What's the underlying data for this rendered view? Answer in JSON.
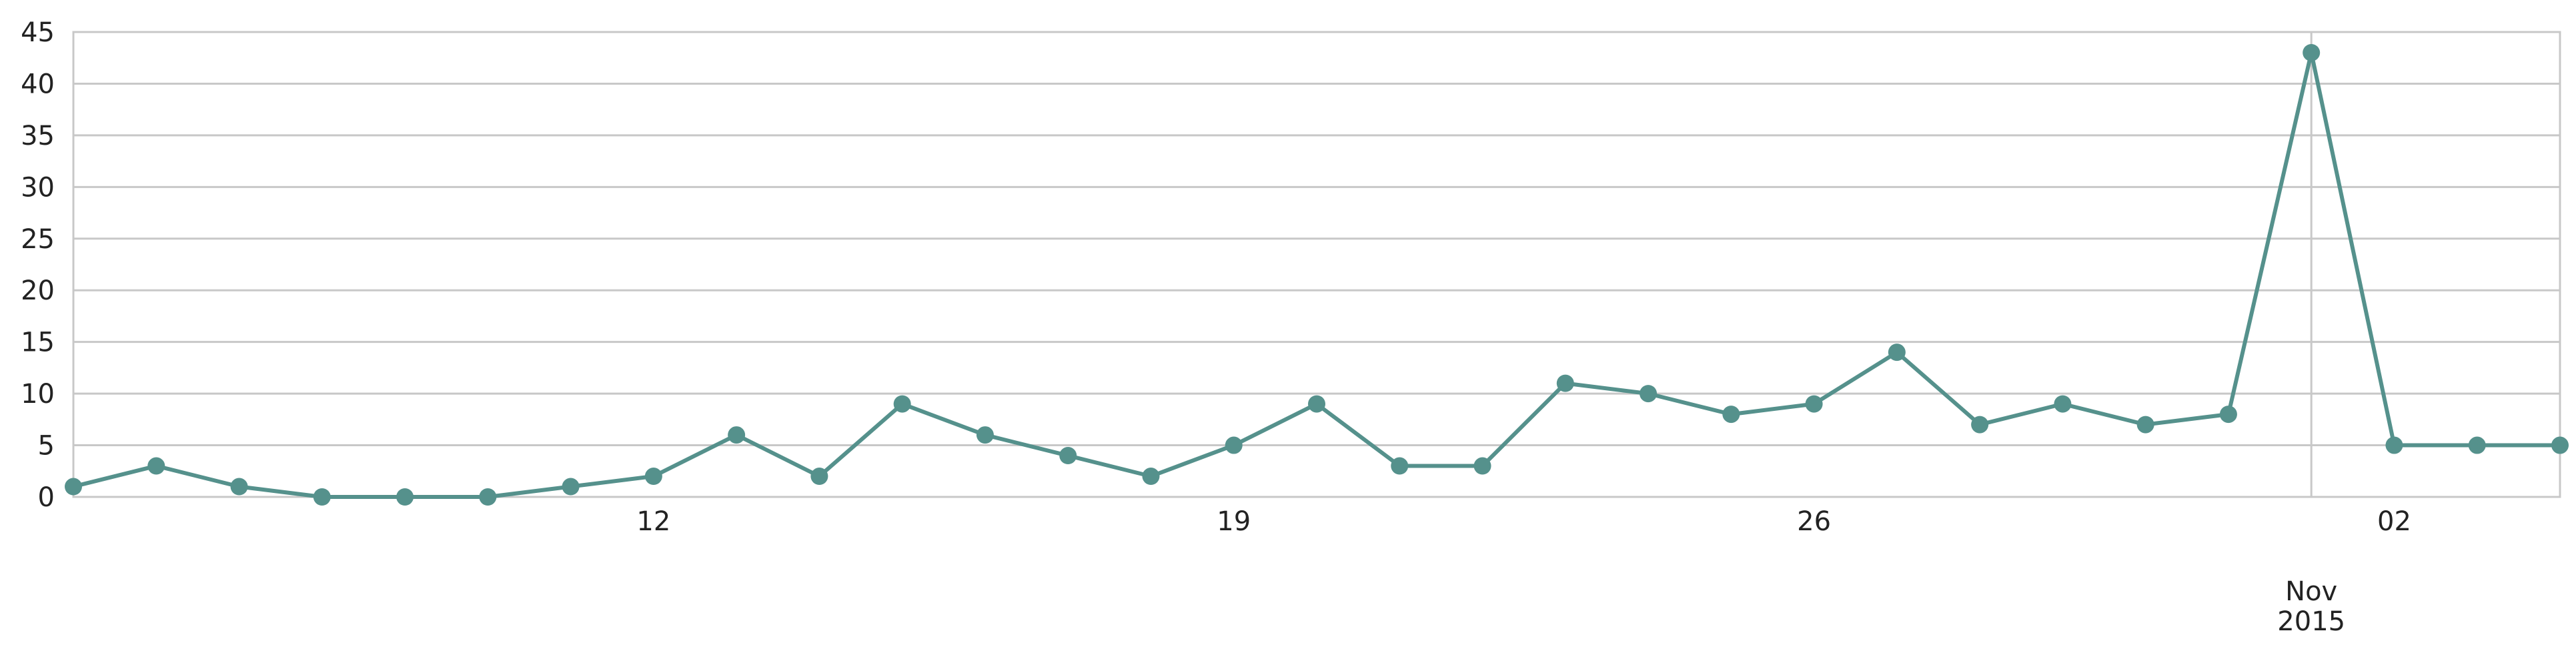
{
  "chart_data": {
    "type": "line",
    "title": "",
    "xlabel": "",
    "ylabel": "",
    "x": [
      "2015-10-05",
      "2015-10-06",
      "2015-10-07",
      "2015-10-08",
      "2015-10-09",
      "2015-10-10",
      "2015-10-11",
      "2015-10-12",
      "2015-10-13",
      "2015-10-14",
      "2015-10-15",
      "2015-10-16",
      "2015-10-17",
      "2015-10-18",
      "2015-10-19",
      "2015-10-20",
      "2015-10-21",
      "2015-10-22",
      "2015-10-23",
      "2015-10-24",
      "2015-10-25",
      "2015-10-26",
      "2015-10-27",
      "2015-10-28",
      "2015-10-29",
      "2015-10-30",
      "2015-10-31",
      "2015-11-01",
      "2015-11-02",
      "2015-11-03",
      "2015-11-04"
    ],
    "series": [
      {
        "values": [
          1,
          3,
          1,
          0,
          0,
          0,
          1,
          2,
          6,
          2,
          9,
          6,
          4,
          2,
          5,
          9,
          3,
          3,
          11,
          10,
          8,
          9,
          14,
          7,
          9,
          7,
          8,
          43,
          5,
          5,
          5
        ]
      }
    ],
    "ylim": [
      0,
      45
    ],
    "yticks": [
      0,
      5,
      10,
      15,
      20,
      25,
      30,
      35,
      40,
      45
    ],
    "ytick_labels": [
      "0",
      "5",
      "10",
      "15",
      "20",
      "25",
      "30",
      "35",
      "40",
      "45"
    ],
    "xticks": [
      {
        "date": "2015-10-12",
        "label": "12"
      },
      {
        "date": "2015-10-19",
        "label": "19"
      },
      {
        "date": "2015-10-26",
        "label": "26"
      },
      {
        "date": "2015-11-02",
        "label": "02"
      }
    ],
    "month_marker": {
      "date": "2015-11-01",
      "label_month": "Nov",
      "label_year": "2015"
    },
    "grid": true,
    "colors": {
      "series": "#55918c",
      "grid": "#c8c8c8",
      "text": "#222222"
    }
  }
}
